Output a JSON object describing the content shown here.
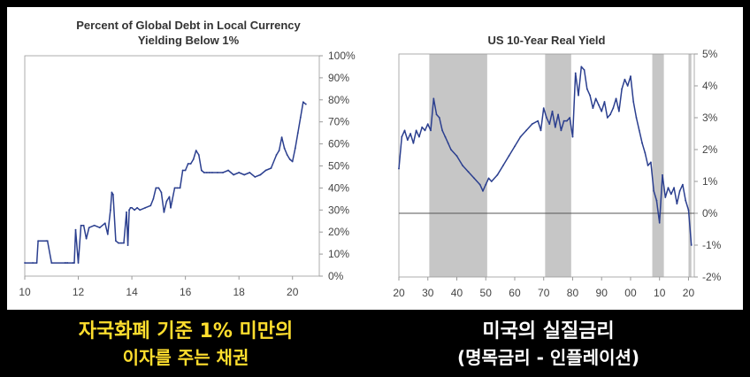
{
  "theme": {
    "line_color": "#2b3f8f",
    "recession_color": "#c6c6c6",
    "left_caption_color": "#ffde2e",
    "right_caption_color": "#ffffff"
  },
  "chart_data": [
    {
      "type": "line",
      "title_line1": "Percent of Global Debt in Local Currency",
      "title_line2": "Yielding Below 1%",
      "xlabel": "",
      "ylabel": "",
      "xlim": [
        10,
        21
      ],
      "ylim": [
        0,
        100
      ],
      "x_ticks": [
        10,
        12,
        14,
        16,
        18,
        20
      ],
      "y_ticks": [
        "0%",
        "10%",
        "20%",
        "30%",
        "40%",
        "50%",
        "60%",
        "70%",
        "80%",
        "90%",
        "100%"
      ],
      "y_axis_side": "right",
      "grid": false,
      "series": [
        {
          "name": "Percent of Global Debt in Local Currency Yielding Below 1%",
          "x": [
            10.0,
            10.3,
            10.45,
            10.5,
            10.8,
            10.85,
            11.0,
            11.5,
            11.55,
            11.6,
            11.8,
            11.85,
            11.9,
            12.0,
            12.1,
            12.2,
            12.3,
            12.4,
            12.6,
            12.8,
            13.0,
            13.1,
            13.2,
            13.25,
            13.3,
            13.4,
            13.5,
            13.6,
            13.7,
            13.8,
            13.85,
            13.9,
            13.95,
            14.0,
            14.1,
            14.2,
            14.3,
            14.5,
            14.7,
            14.8,
            14.9,
            15.0,
            15.1,
            15.2,
            15.3,
            15.4,
            15.45,
            15.5,
            15.6,
            15.7,
            15.8,
            15.9,
            16.0,
            16.1,
            16.2,
            16.3,
            16.4,
            16.5,
            16.6,
            16.7,
            16.8,
            16.9,
            17.0,
            17.2,
            17.4,
            17.6,
            17.8,
            18.0,
            18.2,
            18.4,
            18.6,
            18.8,
            19.0,
            19.2,
            19.4,
            19.5,
            19.6,
            19.7,
            19.8,
            19.9,
            20.0,
            20.1,
            20.2,
            20.3,
            20.4,
            20.5
          ],
          "values": [
            6,
            6,
            6,
            16,
            16,
            16,
            6,
            6,
            6,
            6,
            6,
            6,
            21,
            6,
            23,
            23,
            17,
            22,
            23,
            22,
            24,
            19,
            30,
            38,
            37,
            16,
            15,
            15,
            15,
            29,
            14,
            30,
            31,
            31,
            30,
            31,
            30,
            31,
            32,
            35,
            40,
            40,
            38,
            29,
            34,
            36,
            31,
            34,
            40,
            40,
            40,
            48,
            48,
            51,
            51,
            53,
            57,
            55,
            48,
            47,
            47,
            47,
            47,
            47,
            47,
            48,
            46,
            47,
            46,
            47,
            45,
            46,
            48,
            49,
            55,
            57,
            63,
            58,
            55,
            53,
            52,
            58,
            65,
            72,
            79,
            78
          ]
        }
      ]
    },
    {
      "type": "line",
      "title": "US 10-Year Real Yield",
      "xlabel": "",
      "ylabel": "",
      "xlim": [
        1920,
        2022
      ],
      "ylim": [
        -2,
        5
      ],
      "x_ticks": [
        1920,
        1930,
        1940,
        1950,
        1960,
        1970,
        1980,
        1990,
        2000,
        2010,
        2020
      ],
      "x_tick_labels": [
        "20",
        "30",
        "40",
        "50",
        "60",
        "70",
        "80",
        "90",
        "00",
        "10",
        "20"
      ],
      "y_ticks": [
        -2,
        -1,
        0,
        1,
        2,
        3,
        4,
        5
      ],
      "y_tick_labels": [
        "-2%",
        "-1%",
        "0%",
        "1%",
        "2%",
        "3%",
        "4%",
        "5%"
      ],
      "y_axis_side": "right",
      "zero_line": true,
      "grid": false,
      "shaded_periods": [
        [
          1930.5,
          1950.5
        ],
        [
          1970.5,
          1979.5
        ],
        [
          2007.5,
          2011.5
        ],
        [
          2020.0,
          2021.0
        ]
      ],
      "series": [
        {
          "name": "US 10-Year Real Yield",
          "x": [
            1920,
            1921,
            1922,
            1923,
            1924,
            1925,
            1926,
            1927,
            1928,
            1929,
            1930,
            1931,
            1932,
            1933,
            1934,
            1935,
            1936,
            1937,
            1938,
            1940,
            1942,
            1944,
            1946,
            1948,
            1949,
            1950,
            1951,
            1952,
            1954,
            1956,
            1958,
            1960,
            1962,
            1964,
            1966,
            1968,
            1969,
            1970,
            1971,
            1972,
            1973,
            1974,
            1975,
            1976,
            1977,
            1978,
            1979,
            1980,
            1981,
            1982,
            1983,
            1984,
            1985,
            1986,
            1987,
            1988,
            1989,
            1990,
            1991,
            1992,
            1993,
            1994,
            1995,
            1996,
            1997,
            1998,
            1999,
            2000,
            2001,
            2002,
            2003,
            2004,
            2005,
            2006,
            2007,
            2008,
            2009,
            2010,
            2011,
            2012,
            2013,
            2014,
            2015,
            2016,
            2017,
            2018,
            2019,
            2020,
            2021
          ],
          "values": [
            1.4,
            2.4,
            2.6,
            2.3,
            2.5,
            2.2,
            2.6,
            2.4,
            2.7,
            2.6,
            2.8,
            2.6,
            3.6,
            3.1,
            3.0,
            2.6,
            2.4,
            2.2,
            2.0,
            1.8,
            1.5,
            1.3,
            1.1,
            0.9,
            0.7,
            0.9,
            1.1,
            1.0,
            1.2,
            1.5,
            1.8,
            2.1,
            2.4,
            2.6,
            2.8,
            2.9,
            2.6,
            3.3,
            3.0,
            2.8,
            3.2,
            2.7,
            3.1,
            2.6,
            2.9,
            2.9,
            3.0,
            2.4,
            4.4,
            3.7,
            4.6,
            4.5,
            3.9,
            3.7,
            3.3,
            3.6,
            3.4,
            3.2,
            3.5,
            3.0,
            3.1,
            3.3,
            3.6,
            3.2,
            3.9,
            4.2,
            4.0,
            4.3,
            3.5,
            3.0,
            2.6,
            2.2,
            1.9,
            1.5,
            1.6,
            0.7,
            0.4,
            -0.3,
            1.2,
            0.5,
            0.8,
            0.6,
            0.8,
            0.3,
            0.7,
            0.9,
            0.4,
            0.1,
            -1.0
          ]
        }
      ]
    }
  ],
  "captions": {
    "left_line1": "자국화폐 기준 1% 미만의",
    "left_line2": "이자를 주는 채권",
    "right_line1": "미국의 실질금리",
    "right_line2": "(명목금리 - 인플레이션)"
  }
}
